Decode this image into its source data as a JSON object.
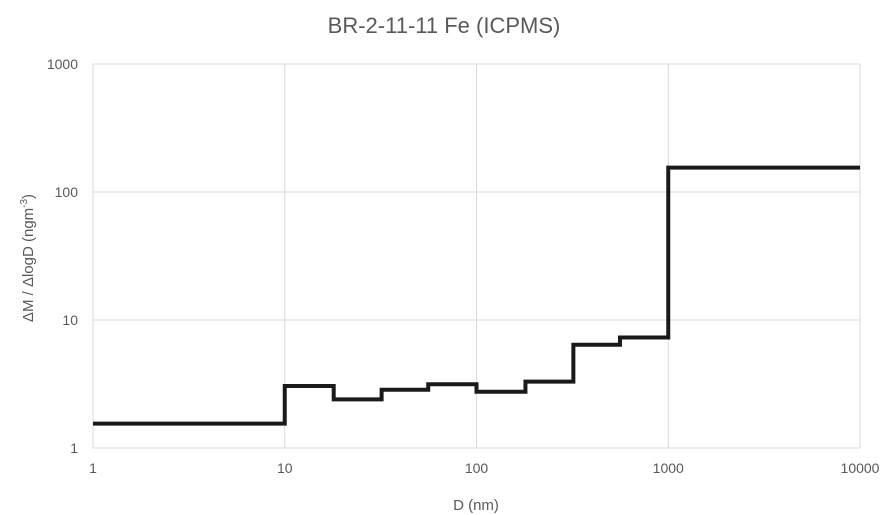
{
  "chart_data": {
    "type": "line",
    "step": true,
    "title": "BR-2-11-11 Fe (ICPMS)",
    "xlabel": "D (nm)",
    "ylabel_main": "ΔM / ΔlogD (ngm",
    "ylabel_sup": "-3",
    "ylabel_close": ")",
    "x_scale": "log",
    "y_scale": "log",
    "xlim": [
      1,
      10000
    ],
    "ylim": [
      1,
      1000
    ],
    "x_ticks": [
      "1",
      "10",
      "100",
      "1000",
      "10000"
    ],
    "y_ticks": [
      "1",
      "10",
      "100",
      "1000"
    ],
    "grid": true,
    "series": [
      {
        "color": "#1a1a1a",
        "bins": [
          {
            "x0": 1,
            "x1": 10,
            "y": 1.55
          },
          {
            "x0": 10,
            "x1": 18,
            "y": 3.05
          },
          {
            "x0": 18,
            "x1": 32,
            "y": 2.4
          },
          {
            "x0": 32,
            "x1": 56,
            "y": 2.85
          },
          {
            "x0": 56,
            "x1": 100,
            "y": 3.15
          },
          {
            "x0": 100,
            "x1": 180,
            "y": 2.75
          },
          {
            "x0": 180,
            "x1": 320,
            "y": 3.3
          },
          {
            "x0": 320,
            "x1": 560,
            "y": 6.4
          },
          {
            "x0": 560,
            "x1": 1000,
            "y": 7.3
          },
          {
            "x0": 1000,
            "x1": 10000,
            "y": 155
          }
        ]
      }
    ]
  }
}
